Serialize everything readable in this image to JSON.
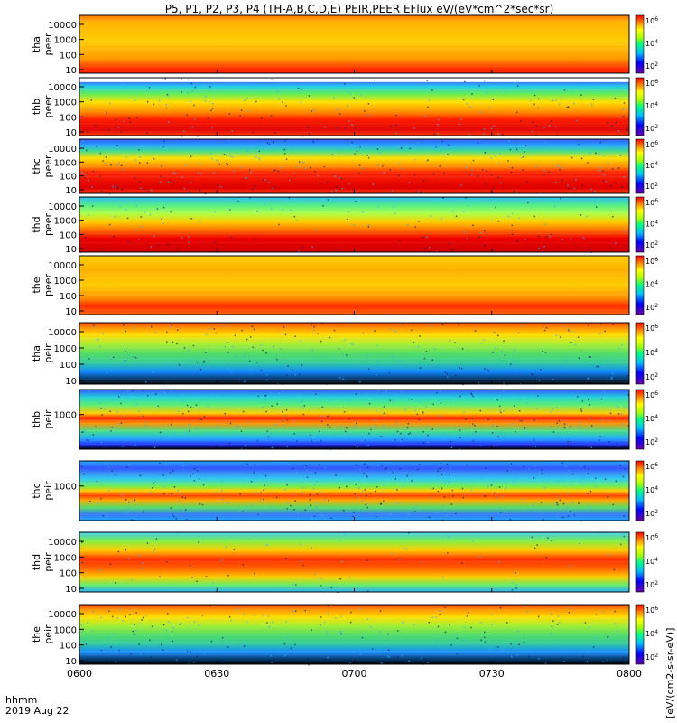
{
  "chart_data": {
    "type": "heatmap",
    "title": "P5, P1, P2, P3, P4 (TH-A,B,C,D,E) PEIR,PEER EFlux eV/(eV*cm^2*sec*sr)",
    "x_axis": {
      "ticks": [
        "0600",
        "0630",
        "0700",
        "0730",
        "0800"
      ],
      "range_minutes": [
        0,
        120
      ],
      "corner_label": "hhmm",
      "date_label": "2019 Aug 22"
    },
    "colorbar_label": "[eV/(cm2-s-sr-eV)]",
    "colorbar_ticks": [
      "10^2",
      "10^4",
      "10^6"
    ],
    "panels": [
      {
        "name": "tha peer",
        "line1": "tha",
        "line2": "peer",
        "ticks": [
          "10000",
          "1000",
          "100",
          "10"
        ],
        "bands": [
          [
            0,
            "#ff7a00"
          ],
          [
            0.12,
            "#ffb400"
          ],
          [
            0.45,
            "#ffcc00"
          ],
          [
            0.75,
            "#ff9800"
          ],
          [
            0.92,
            "#ff3000"
          ],
          [
            1,
            "#ff2000"
          ]
        ],
        "floor": 0.25
      },
      {
        "name": "thb peer",
        "line1": "thb",
        "line2": "peer",
        "ticks": [
          "10000",
          "1000",
          "100",
          "10"
        ],
        "bands": [
          [
            0,
            "#ffffff"
          ],
          [
            0.07,
            "#ffffff"
          ],
          [
            0.08,
            "#3a7cff"
          ],
          [
            0.15,
            "#22ccee"
          ],
          [
            0.28,
            "#66ee55"
          ],
          [
            0.42,
            "#ffe000"
          ],
          [
            0.6,
            "#ff8800"
          ],
          [
            0.72,
            "#ff2000"
          ],
          [
            0.9,
            "#e00000"
          ],
          [
            1,
            "#ff4000"
          ]
        ],
        "noise": 0.2
      },
      {
        "name": "thc peer",
        "line1": "thc",
        "line2": "peer",
        "ticks": [
          "10000",
          "1000",
          "100",
          "10"
        ],
        "bands": [
          [
            0,
            "#3355ff"
          ],
          [
            0.12,
            "#22aaff"
          ],
          [
            0.22,
            "#44dd88"
          ],
          [
            0.35,
            "#ffe000"
          ],
          [
            0.5,
            "#ff9000"
          ],
          [
            0.62,
            "#ff2000"
          ],
          [
            0.9,
            "#dd0000"
          ],
          [
            1,
            "#ff3000"
          ]
        ],
        "noise": 0.3
      },
      {
        "name": "thd peer",
        "line1": "thd",
        "line2": "peer",
        "ticks": [
          "10000",
          "1000",
          "100",
          "10"
        ],
        "bands": [
          [
            0,
            "#22bbee"
          ],
          [
            0.15,
            "#55ee88"
          ],
          [
            0.3,
            "#aaff44"
          ],
          [
            0.45,
            "#ffcc00"
          ],
          [
            0.6,
            "#ff7000"
          ],
          [
            0.75,
            "#ee0000"
          ],
          [
            1,
            "#cc0000"
          ]
        ],
        "noise": 0.15
      },
      {
        "name": "the peer",
        "line1": "the",
        "line2": "peer",
        "ticks": [
          "10000",
          "1000",
          "100",
          "10"
        ],
        "bands": [
          [
            0,
            "#ffd000"
          ],
          [
            0.25,
            "#ffb000"
          ],
          [
            0.5,
            "#ffcc00"
          ],
          [
            0.72,
            "#ff9000"
          ],
          [
            0.85,
            "#ff3000"
          ],
          [
            1,
            "#ff6000"
          ]
        ],
        "floor": 0.2
      },
      {
        "name": "tha peir",
        "line1": "tha",
        "line2": "peir",
        "ticks": [
          "10000",
          "1000",
          "100",
          "10"
        ],
        "bands": [
          [
            0,
            "#ff4000"
          ],
          [
            0.08,
            "#ff9000"
          ],
          [
            0.2,
            "#ffdd00"
          ],
          [
            0.35,
            "#aaee33"
          ],
          [
            0.5,
            "#55dd66"
          ],
          [
            0.65,
            "#33cc99"
          ],
          [
            0.8,
            "#1188ff"
          ],
          [
            1,
            "#000000"
          ]
        ],
        "noise": 0.25
      },
      {
        "name": "thb peir",
        "line1": "thb",
        "line2": "peir",
        "ticks": [
          "1000"
        ],
        "bands": [
          [
            0,
            "#3355ff"
          ],
          [
            0.12,
            "#22ccdd"
          ],
          [
            0.25,
            "#55ee77"
          ],
          [
            0.4,
            "#ffcc00"
          ],
          [
            0.48,
            "#ff2000"
          ],
          [
            0.56,
            "#ff9000"
          ],
          [
            0.7,
            "#44dd88"
          ],
          [
            0.82,
            "#22aaff"
          ],
          [
            0.92,
            "#2233ff"
          ],
          [
            1,
            "#000000"
          ]
        ],
        "noise": 0.35
      },
      {
        "name": "thc peir",
        "line1": "thc",
        "line2": "peir",
        "ticks": [
          "1000"
        ],
        "bands": [
          [
            0,
            "#22aaff"
          ],
          [
            0.12,
            "#3355ff"
          ],
          [
            0.3,
            "#33ccee"
          ],
          [
            0.42,
            "#66ee55"
          ],
          [
            0.5,
            "#ffcc00"
          ],
          [
            0.58,
            "#ff4000"
          ],
          [
            0.66,
            "#ffaa00"
          ],
          [
            0.78,
            "#55dd66"
          ],
          [
            0.9,
            "#3377ff"
          ],
          [
            1,
            "#22aaff"
          ]
        ],
        "noise": 0.35
      },
      {
        "name": "thd peir",
        "line1": "thd",
        "line2": "peir",
        "ticks": [
          "10000",
          "1000",
          "100",
          "10"
        ],
        "bands": [
          [
            0,
            "#33ccee"
          ],
          [
            0.15,
            "#88ee44"
          ],
          [
            0.3,
            "#ffcc00"
          ],
          [
            0.45,
            "#ff3000"
          ],
          [
            0.6,
            "#ff6000"
          ],
          [
            0.75,
            "#ffcc00"
          ],
          [
            0.88,
            "#66ee66"
          ],
          [
            1,
            "#22aaff"
          ]
        ],
        "noise": 0.1
      },
      {
        "name": "the peir",
        "line1": "the",
        "line2": "peir",
        "ticks": [
          "10000",
          "1000",
          "100",
          "10"
        ],
        "bands": [
          [
            0,
            "#ff4000"
          ],
          [
            0.08,
            "#ff9000"
          ],
          [
            0.2,
            "#ffdd00"
          ],
          [
            0.35,
            "#aaee33"
          ],
          [
            0.5,
            "#55dd66"
          ],
          [
            0.65,
            "#33cc99"
          ],
          [
            0.8,
            "#1188ff"
          ],
          [
            1,
            "#000000"
          ]
        ],
        "noise": 0.25
      }
    ]
  }
}
